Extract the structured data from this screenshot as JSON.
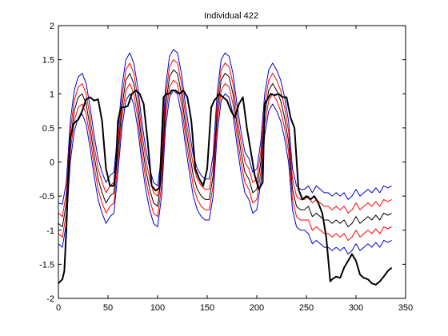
{
  "chart_data": {
    "type": "line",
    "title": "Individual 422",
    "xlabel": "",
    "ylabel": "",
    "xlim": [
      0,
      350
    ],
    "ylim": [
      -2,
      2
    ],
    "xticks": [
      0,
      50,
      100,
      150,
      200,
      250,
      300,
      350
    ],
    "yticks": [
      -2,
      -1.5,
      -1,
      -0.5,
      0,
      0.5,
      1,
      1.5,
      2
    ],
    "grid": false,
    "legend": "none",
    "colors": {
      "observed": "#000000",
      "mean": "#000000",
      "inner_band": "#ff0000",
      "outer_band": "#0000cc"
    },
    "observed": {
      "x": [
        0,
        2,
        4,
        6,
        8,
        10,
        12,
        15,
        18,
        20,
        24,
        28,
        32,
        36,
        40,
        44,
        48,
        52,
        56,
        58,
        60,
        63,
        66,
        70,
        74,
        78,
        82,
        86,
        90,
        94,
        98,
        102,
        106,
        109,
        112,
        114,
        118,
        122,
        126,
        130,
        134,
        138,
        142,
        146,
        150,
        154,
        157,
        160,
        162,
        166,
        170,
        174,
        178,
        182,
        186,
        190,
        194,
        198,
        202,
        206,
        208,
        210,
        214,
        218,
        222,
        226,
        230,
        234,
        238,
        242,
        246,
        250,
        254,
        258,
        262,
        266,
        270,
        274,
        276,
        280,
        284,
        288,
        292,
        296,
        300,
        304,
        308,
        312,
        316,
        320,
        324,
        328,
        332,
        336
      ],
      "y": [
        -1.78,
        -1.75,
        -1.72,
        -1.6,
        -1.0,
        -0.2,
        0.35,
        0.55,
        0.6,
        0.62,
        0.75,
        0.92,
        0.95,
        0.9,
        0.92,
        0.6,
        -0.1,
        -0.35,
        -0.35,
        -0.05,
        0.6,
        0.8,
        0.8,
        0.82,
        1.0,
        1.05,
        1.0,
        0.85,
        0.3,
        -0.35,
        -0.42,
        -0.38,
        0.95,
        1.0,
        1.0,
        1.05,
        1.05,
        1.0,
        1.05,
        0.95,
        0.6,
        -0.1,
        -0.25,
        -0.35,
        -0.1,
        0.8,
        0.9,
        0.95,
        1.0,
        0.95,
        0.9,
        0.75,
        0.65,
        0.85,
        0.95,
        0.5,
        0.15,
        -0.2,
        -0.4,
        -0.3,
        0.85,
        0.9,
        1.0,
        0.98,
        1.0,
        0.95,
        0.95,
        0.65,
        0.5,
        -0.4,
        -0.55,
        -0.5,
        -0.55,
        -0.5,
        -0.6,
        -0.75,
        -1.1,
        -1.75,
        -1.72,
        -1.68,
        -1.7,
        -1.55,
        -1.45,
        -1.35,
        -1.45,
        -1.65,
        -1.7,
        -1.72,
        -1.78,
        -1.8,
        -1.75,
        -1.68,
        -1.6,
        -1.55
      ]
    },
    "band": {
      "x": [
        0,
        4,
        8,
        12,
        16,
        20,
        24,
        28,
        32,
        36,
        40,
        44,
        48,
        52,
        56,
        60,
        64,
        68,
        72,
        76,
        80,
        84,
        88,
        92,
        96,
        100,
        104,
        108,
        112,
        116,
        120,
        124,
        128,
        132,
        136,
        140,
        144,
        148,
        152,
        156,
        160,
        164,
        168,
        172,
        176,
        180,
        184,
        188,
        192,
        196,
        200,
        204,
        208,
        212,
        216,
        220,
        224,
        228,
        232,
        236,
        240,
        244,
        248,
        252,
        256,
        260,
        264,
        268,
        272,
        276,
        280,
        284,
        288,
        292,
        296,
        300,
        304,
        308,
        312,
        316,
        320,
        324,
        328,
        332,
        336
      ],
      "outer_upper": [
        -0.6,
        -0.62,
        -0.3,
        0.6,
        1.05,
        1.25,
        1.3,
        1.15,
        0.8,
        0.4,
        0.05,
        -0.15,
        -0.3,
        -0.2,
        -0.15,
        0.45,
        1.1,
        1.5,
        1.6,
        1.45,
        1.1,
        0.6,
        0.2,
        -0.1,
        -0.3,
        -0.35,
        0.1,
        1.1,
        1.55,
        1.65,
        1.6,
        1.3,
        0.85,
        0.45,
        0.1,
        -0.1,
        -0.2,
        -0.25,
        -0.25,
        0.1,
        1.0,
        1.5,
        1.6,
        1.55,
        1.3,
        0.85,
        0.45,
        0.15,
        0.05,
        -0.15,
        -0.1,
        0.3,
        1.0,
        1.35,
        1.45,
        1.35,
        1.2,
        0.95,
        0.6,
        -0.1,
        -0.35,
        -0.4,
        -0.4,
        -0.35,
        -0.45,
        -0.35,
        -0.4,
        -0.45,
        -0.45,
        -0.5,
        -0.45,
        -0.5,
        -0.45,
        -0.55,
        -0.5,
        -0.4,
        -0.5,
        -0.45,
        -0.4,
        -0.45,
        -0.38,
        -0.45,
        -0.35,
        -0.38,
        -0.35
      ],
      "inner_upper": [
        -0.75,
        -0.8,
        -0.45,
        0.45,
        0.9,
        1.1,
        1.15,
        1.0,
        0.65,
        0.25,
        -0.1,
        -0.3,
        -0.45,
        -0.35,
        -0.3,
        0.3,
        0.95,
        1.35,
        1.45,
        1.3,
        0.95,
        0.45,
        0.05,
        -0.25,
        -0.45,
        -0.5,
        -0.05,
        0.95,
        1.4,
        1.5,
        1.45,
        1.15,
        0.7,
        0.3,
        -0.05,
        -0.25,
        -0.35,
        -0.4,
        -0.4,
        -0.05,
        0.85,
        1.35,
        1.45,
        1.4,
        1.15,
        0.7,
        0.3,
        0.0,
        -0.1,
        -0.3,
        -0.25,
        0.15,
        0.85,
        1.2,
        1.3,
        1.2,
        1.05,
        0.8,
        0.45,
        -0.25,
        -0.5,
        -0.55,
        -0.55,
        -0.5,
        -0.6,
        -0.55,
        -0.6,
        -0.65,
        -0.65,
        -0.7,
        -0.65,
        -0.7,
        -0.65,
        -0.75,
        -0.7,
        -0.6,
        -0.7,
        -0.65,
        -0.6,
        -0.65,
        -0.58,
        -0.65,
        -0.55,
        -0.58,
        -0.55
      ],
      "mean": [
        -0.9,
        -0.95,
        -0.6,
        0.3,
        0.75,
        0.95,
        1.0,
        0.85,
        0.5,
        0.1,
        -0.25,
        -0.45,
        -0.6,
        -0.5,
        -0.45,
        0.15,
        0.8,
        1.2,
        1.3,
        1.15,
        0.8,
        0.3,
        -0.1,
        -0.4,
        -0.6,
        -0.65,
        -0.2,
        0.8,
        1.25,
        1.35,
        1.3,
        1.0,
        0.55,
        0.15,
        -0.2,
        -0.4,
        -0.5,
        -0.55,
        -0.55,
        -0.2,
        0.7,
        1.2,
        1.3,
        1.25,
        1.0,
        0.55,
        0.15,
        -0.15,
        -0.25,
        -0.45,
        -0.4,
        0.0,
        0.7,
        1.05,
        1.15,
        1.05,
        0.9,
        0.65,
        0.3,
        -0.4,
        -0.65,
        -0.7,
        -0.7,
        -0.65,
        -0.8,
        -0.75,
        -0.8,
        -0.85,
        -0.85,
        -0.9,
        -0.85,
        -0.9,
        -0.85,
        -0.95,
        -0.9,
        -0.8,
        -0.9,
        -0.85,
        -0.8,
        -0.85,
        -0.78,
        -0.85,
        -0.75,
        -0.78,
        -0.75
      ],
      "inner_lower": [
        -1.05,
        -1.1,
        -0.75,
        0.15,
        0.6,
        0.8,
        0.85,
        0.7,
        0.35,
        -0.05,
        -0.4,
        -0.6,
        -0.75,
        -0.65,
        -0.6,
        0.0,
        0.65,
        1.05,
        1.15,
        1.0,
        0.65,
        0.15,
        -0.25,
        -0.55,
        -0.75,
        -0.8,
        -0.35,
        0.65,
        1.1,
        1.2,
        1.15,
        0.85,
        0.4,
        0.0,
        -0.35,
        -0.55,
        -0.65,
        -0.7,
        -0.7,
        -0.35,
        0.55,
        1.05,
        1.15,
        1.1,
        0.85,
        0.4,
        0.0,
        -0.3,
        -0.4,
        -0.6,
        -0.55,
        -0.15,
        0.55,
        0.9,
        1.0,
        0.9,
        0.75,
        0.5,
        0.15,
        -0.55,
        -0.8,
        -0.85,
        -0.85,
        -0.85,
        -1.0,
        -0.95,
        -1.0,
        -1.05,
        -1.05,
        -1.1,
        -1.05,
        -1.1,
        -1.05,
        -1.15,
        -1.1,
        -1.0,
        -1.1,
        -1.05,
        -1.0,
        -1.05,
        -0.98,
        -1.05,
        -0.95,
        -0.98,
        -0.95
      ],
      "outer_lower": [
        -1.2,
        -1.25,
        -0.9,
        0.0,
        0.45,
        0.65,
        0.7,
        0.55,
        0.2,
        -0.2,
        -0.55,
        -0.75,
        -0.9,
        -0.8,
        -0.75,
        -0.15,
        0.5,
        0.9,
        1.0,
        0.85,
        0.5,
        0.0,
        -0.4,
        -0.7,
        -0.9,
        -0.95,
        -0.5,
        0.5,
        0.95,
        1.05,
        1.0,
        0.7,
        0.25,
        -0.15,
        -0.5,
        -0.7,
        -0.8,
        -0.85,
        -0.85,
        -0.5,
        0.4,
        0.9,
        1.0,
        0.95,
        0.7,
        0.25,
        -0.15,
        -0.45,
        -0.55,
        -0.75,
        -0.7,
        -0.3,
        0.4,
        0.75,
        0.85,
        0.75,
        0.6,
        0.35,
        0.0,
        -0.7,
        -0.95,
        -1.0,
        -1.0,
        -1.05,
        -1.2,
        -1.15,
        -1.2,
        -1.25,
        -1.25,
        -1.3,
        -1.25,
        -1.3,
        -1.25,
        -1.35,
        -1.3,
        -1.2,
        -1.3,
        -1.25,
        -1.2,
        -1.25,
        -1.18,
        -1.25,
        -1.15,
        -1.18,
        -1.15
      ]
    }
  }
}
